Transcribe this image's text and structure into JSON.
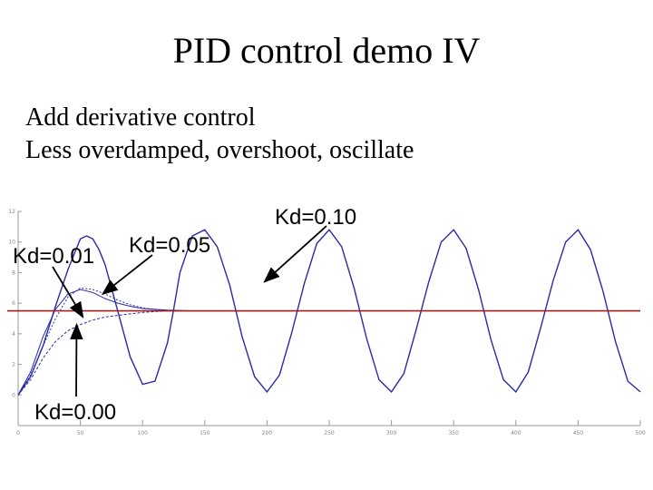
{
  "slide": {
    "title": "PID control demo IV",
    "bullets": [
      "Add derivative control",
      "Less overdamped, overshoot, oscillate"
    ]
  },
  "chart_data": {
    "type": "line",
    "title": "",
    "xlabel": "",
    "ylabel": "",
    "xlim": [
      0,
      500
    ],
    "ylim": [
      -2,
      12
    ],
    "grid": false,
    "legend": "none",
    "x_ticks": [
      0,
      50,
      100,
      150,
      200,
      250,
      300,
      350,
      400,
      450,
      500
    ],
    "y_ticks": [
      0,
      2,
      4,
      6,
      8,
      10,
      12
    ],
    "setpoint": 5.5,
    "colors": {
      "setpoint": "#a02020",
      "response": "#2a2aa8",
      "axis": "#9a9a9a",
      "annotation": "#000000"
    },
    "series": [
      {
        "name": "Kd=0.10",
        "x": [
          0,
          10,
          20,
          30,
          40,
          45,
          50,
          55,
          60,
          65,
          70,
          80,
          90,
          100,
          110,
          120,
          125,
          130,
          140,
          150,
          160,
          170,
          180,
          190,
          200,
          210,
          220,
          230,
          240,
          250,
          260,
          270,
          280,
          290,
          300,
          310,
          320,
          330,
          340,
          350,
          360,
          370,
          380,
          390,
          400,
          410,
          420,
          430,
          440,
          450,
          460,
          470,
          480,
          490,
          500
        ],
        "y": [
          0,
          1.2,
          3.2,
          5.8,
          8.2,
          9.2,
          10.2,
          10.4,
          10.2,
          9.5,
          8.5,
          5.5,
          2.5,
          0.7,
          0.9,
          3.4,
          5.6,
          8.0,
          10.4,
          10.8,
          9.7,
          7.2,
          3.8,
          1.2,
          0.2,
          1.3,
          4.1,
          7.3,
          9.9,
          10.8,
          9.7,
          7.0,
          3.7,
          1.0,
          0.2,
          1.4,
          4.3,
          7.4,
          10.0,
          10.8,
          9.6,
          6.9,
          3.6,
          1.0,
          0.2,
          1.5,
          4.4,
          7.5,
          10.0,
          10.8,
          9.5,
          6.8,
          3.5,
          0.9,
          0.2
        ]
      },
      {
        "name": "Kd=0.05",
        "x": [
          0,
          10,
          20,
          30,
          40,
          50,
          60,
          70,
          80,
          90,
          100,
          110,
          120,
          140,
          160,
          180,
          200,
          220
        ],
        "y": [
          0,
          1.3,
          3.2,
          5.0,
          6.4,
          7.0,
          6.9,
          6.6,
          6.2,
          5.9,
          5.7,
          5.6,
          5.5,
          5.5,
          5.5,
          5.5,
          5.5,
          5.5
        ]
      },
      {
        "name": "Kd=0.01",
        "x": [
          0,
          10,
          20,
          30,
          40,
          50,
          60,
          70,
          80,
          90,
          100,
          110,
          120,
          140,
          160,
          180,
          200,
          220
        ],
        "y": [
          0,
          1.5,
          3.8,
          5.6,
          6.6,
          6.9,
          6.7,
          6.3,
          6.0,
          5.8,
          5.65,
          5.6,
          5.55,
          5.5,
          5.5,
          5.5,
          5.5,
          5.5
        ]
      },
      {
        "name": "Kd=0.00",
        "x": [
          0,
          10,
          20,
          30,
          40,
          50,
          60,
          70,
          80,
          90,
          100,
          110,
          120,
          140,
          160,
          180,
          200,
          220
        ],
        "y": [
          0,
          1.0,
          2.4,
          3.5,
          4.2,
          4.6,
          4.9,
          5.1,
          5.2,
          5.3,
          5.4,
          5.45,
          5.5,
          5.5,
          5.5,
          5.5,
          5.5,
          5.5
        ]
      }
    ],
    "annotations": [
      {
        "text": "Kd=0.10",
        "series": "Kd=0.10",
        "target": [
          198,
          7.4
        ]
      },
      {
        "text": "Kd=0.05",
        "series": "Kd=0.05",
        "target": [
          68,
          6.6
        ]
      },
      {
        "text": "Kd=0.01",
        "series": "Kd=0.01",
        "target": [
          52,
          5.1
        ]
      },
      {
        "text": "Kd=0.00",
        "series": "Kd=0.00",
        "target": [
          47,
          4.6
        ]
      }
    ]
  }
}
